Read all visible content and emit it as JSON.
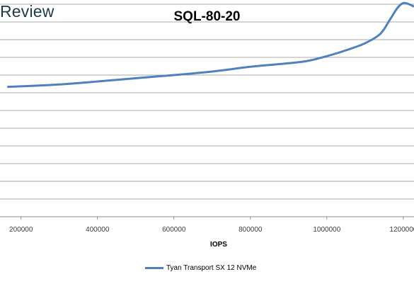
{
  "brand": {
    "text": "Review"
  },
  "colors": {
    "series": "#4f81bd",
    "grid": "#8c8c8c",
    "brand": "#1d3a4a"
  },
  "chart_data": {
    "type": "line",
    "title": "SQL-80-20",
    "xlabel": "IOPS",
    "ylabel": "",
    "x_ticks": [
      200000,
      400000,
      600000,
      800000,
      1000000,
      1200000
    ],
    "x_tick_labels": [
      "200000",
      "400000",
      "600000",
      "800000",
      "1000000",
      "1200000"
    ],
    "xlim": [
      145000,
      1228000
    ],
    "ylim": [
      0,
      9
    ],
    "grid": true,
    "legend_position": "bottom",
    "series": [
      {
        "name": "Tyan Transport SX 12 NVMe",
        "x": [
          164000,
          300000,
          450000,
          600000,
          700000,
          800000,
          900000,
          950000,
          1000000,
          1050000,
          1100000,
          1140000,
          1165000,
          1185000,
          1200000,
          1215000,
          1228000
        ],
        "y": [
          5.5,
          5.6,
          5.8,
          6.0,
          6.15,
          6.35,
          6.5,
          6.6,
          6.8,
          7.05,
          7.35,
          7.75,
          8.35,
          8.85,
          9.05,
          9.0,
          8.9
        ]
      }
    ]
  }
}
